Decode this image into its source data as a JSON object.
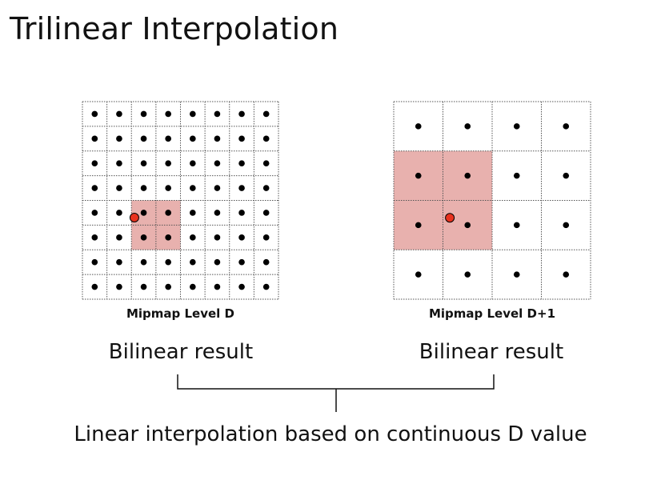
{
  "title": "Trilinear Interpolation",
  "level_d": {
    "label": "Mipmap Level D",
    "grid_size": 8,
    "highlight": {
      "col_start": 2,
      "row_start": 4,
      "cols": 2,
      "rows": 2
    },
    "sample_point": {
      "u": 0.265,
      "v": 0.587
    },
    "result_label": "Bilinear result"
  },
  "level_d1": {
    "label": "Mipmap Level D+1",
    "grid_size": 4,
    "highlight": {
      "col_start": 0,
      "row_start": 1,
      "cols": 2,
      "rows": 2
    },
    "sample_point": {
      "u": 0.285,
      "v": 0.588
    },
    "result_label": "Bilinear result"
  },
  "conclusion": "Linear interpolation based on continuous D value",
  "colors": {
    "highlight": "#e8b1ae",
    "sample_point": "#e8321e",
    "dot": "#000000",
    "grid_line": "#555555"
  }
}
